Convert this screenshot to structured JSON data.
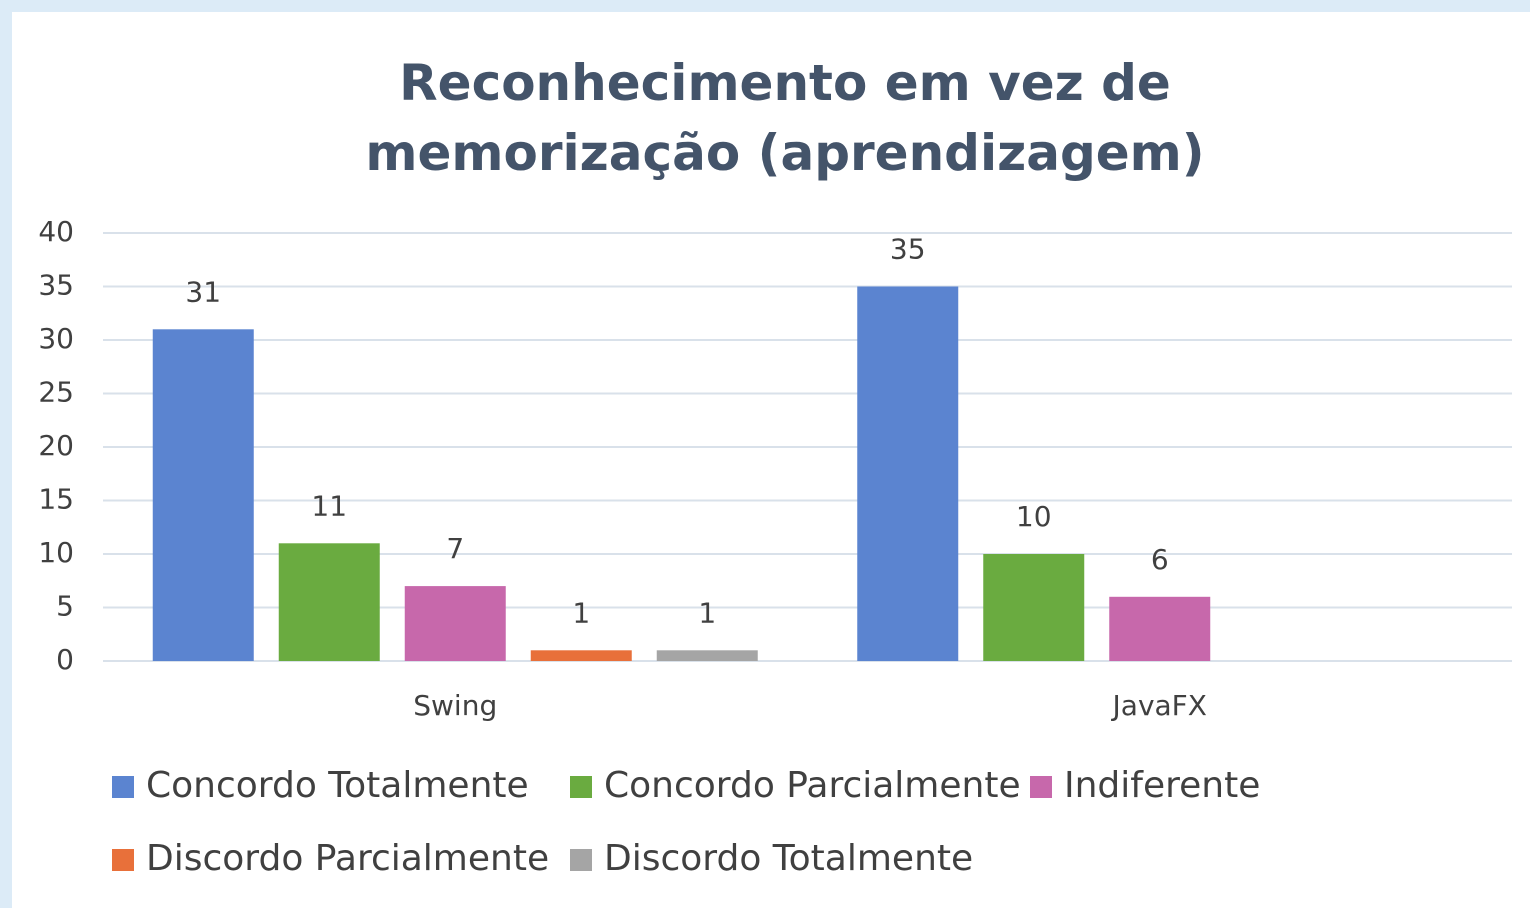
{
  "chart_data": {
    "type": "bar",
    "title": "Reconhecimento em vez de memorização (aprendizagem)",
    "categories": [
      "Swing",
      "JavaFX"
    ],
    "series": [
      {
        "name": "Concordo Totalmente",
        "color": "#5b84d0",
        "values": [
          31,
          35
        ]
      },
      {
        "name": "Concordo Parcialmente",
        "color": "#6aab40",
        "values": [
          11,
          10
        ]
      },
      {
        "name": "Indiferente",
        "color": "#c768ab",
        "values": [
          7,
          6
        ]
      },
      {
        "name": "Discordo Parcialmente",
        "color": "#e8703a",
        "values": [
          1,
          null
        ]
      },
      {
        "name": "Discordo Totalmente",
        "color": "#a5a5a5",
        "values": [
          1,
          null
        ]
      }
    ],
    "ylim": [
      0,
      40
    ],
    "yticks": [
      0,
      5,
      10,
      15,
      20,
      25,
      30,
      35,
      40
    ],
    "grid": true,
    "legend": "bottom"
  }
}
